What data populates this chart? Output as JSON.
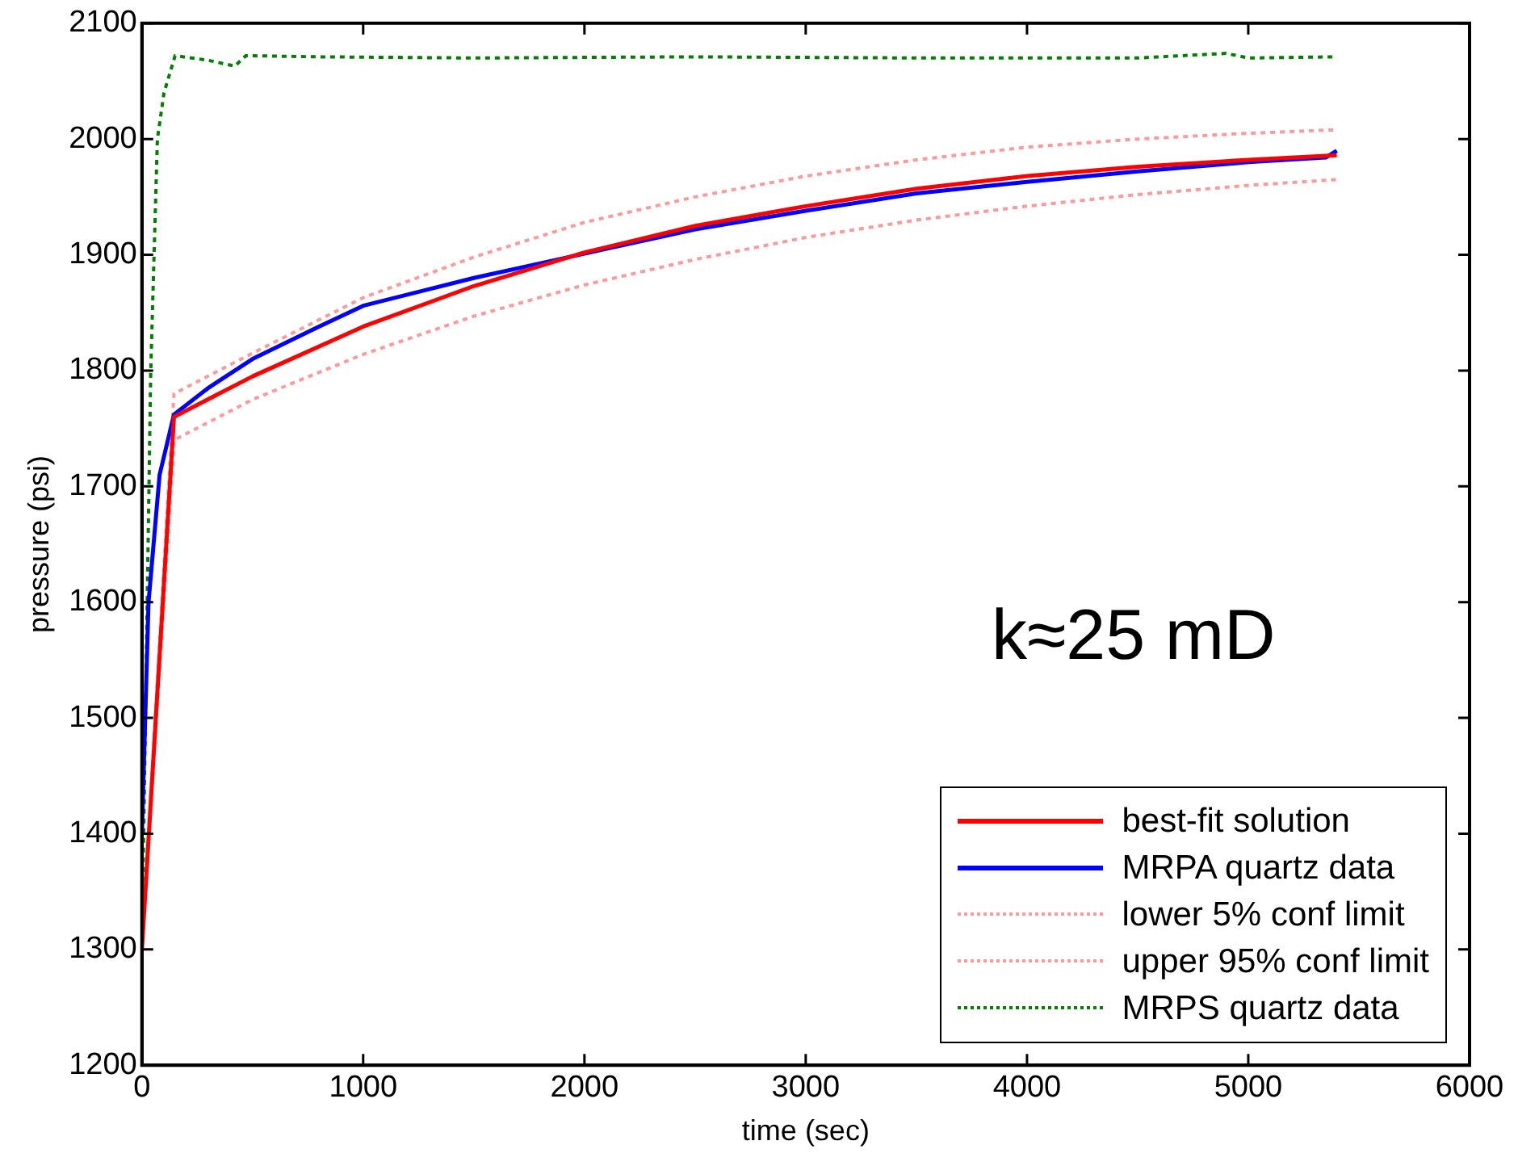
{
  "chart_data": {
    "type": "line",
    "xlabel": "time (sec)",
    "ylabel": "pressure (psi)",
    "xlim": [
      0,
      6000
    ],
    "ylim": [
      1200,
      2100
    ],
    "xticks": [
      0,
      1000,
      2000,
      3000,
      4000,
      5000,
      6000
    ],
    "yticks": [
      1200,
      1300,
      1400,
      1500,
      1600,
      1700,
      1800,
      1900,
      2000,
      2100
    ],
    "grid": false,
    "legend": "bottom right",
    "marker": "none",
    "annotations": [
      "k≈25 mD"
    ],
    "series": [
      {
        "name": "best-fit solution",
        "color": "#ff0000",
        "line_style": "solid",
        "x": [
          0,
          145,
          500,
          1000,
          1500,
          2000,
          2500,
          3000,
          3500,
          4000,
          4500,
          5000,
          5400
        ],
        "values": [
          1300,
          1760,
          1795,
          1838,
          1873,
          1902,
          1925,
          1942,
          1957,
          1968,
          1976,
          1982,
          1986
        ]
      },
      {
        "name": "MRPA quartz data",
        "color": "#0000ff",
        "line_style": "solid",
        "x": [
          0,
          30,
          80,
          145,
          300,
          500,
          800,
          1000,
          1500,
          2000,
          2500,
          3000,
          3500,
          4000,
          4500,
          5000,
          5350,
          5400
        ],
        "values": [
          1400,
          1600,
          1710,
          1762,
          1785,
          1810,
          1838,
          1856,
          1880,
          1901,
          1922,
          1938,
          1953,
          1963,
          1972,
          1980,
          1984,
          1990
        ]
      },
      {
        "name": "lower 5% conf limit",
        "color": "#ff9999",
        "line_style": "dotted",
        "x": [
          0,
          145,
          500,
          1000,
          1500,
          2000,
          2500,
          3000,
          3500,
          4000,
          4500,
          5000,
          5400
        ],
        "values": [
          1300,
          1740,
          1775,
          1814,
          1847,
          1874,
          1896,
          1915,
          1930,
          1942,
          1952,
          1960,
          1965
        ]
      },
      {
        "name": "upper 95% conf limit",
        "color": "#ff9999",
        "line_style": "dotted",
        "x": [
          0,
          145,
          500,
          1000,
          1500,
          2000,
          2500,
          3000,
          3500,
          4000,
          4500,
          5000,
          5400
        ],
        "values": [
          1300,
          1780,
          1815,
          1863,
          1898,
          1928,
          1950,
          1968,
          1982,
          1993,
          2000,
          2005,
          2008
        ]
      },
      {
        "name": "MRPS quartz data",
        "color": "#008000",
        "line_style": "dotted",
        "x": [
          0,
          40,
          70,
          100,
          150,
          300,
          420,
          470,
          800,
          1500,
          2500,
          3500,
          4500,
          4900,
          5000,
          5400
        ],
        "values": [
          1300,
          1800,
          2000,
          2040,
          2072,
          2068,
          2063,
          2072,
          2071,
          2070,
          2071,
          2070,
          2070,
          2074,
          2070,
          2071
        ]
      }
    ]
  }
}
